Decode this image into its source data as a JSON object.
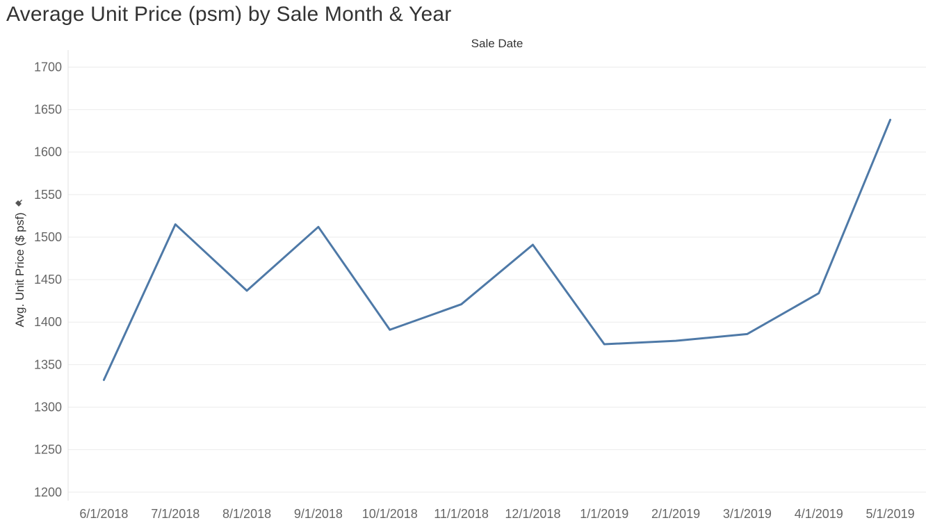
{
  "title": "Average Unit Price (psm) by Sale Month & Year",
  "icons": {
    "axis_pin": "pin-icon"
  },
  "colors": {
    "series": "#4e79a7"
  },
  "chart_data": {
    "type": "line",
    "title": "Average Unit Price (psm) by Sale Month & Year",
    "xlabel": "Sale Date",
    "ylabel": "Avg. Unit Price ($ psf)",
    "categories": [
      "6/1/2018",
      "7/1/2018",
      "8/1/2018",
      "9/1/2018",
      "10/1/2018",
      "11/1/2018",
      "12/1/2018",
      "1/1/2019",
      "2/1/2019",
      "3/1/2019",
      "4/1/2019",
      "5/1/2019"
    ],
    "series": [
      {
        "values": [
          1332,
          1515,
          1437,
          1512,
          1391,
          1421,
          1491,
          1374,
          1378,
          1386,
          1434,
          1638
        ]
      }
    ],
    "yticks": [
      1200,
      1250,
      1300,
      1350,
      1400,
      1450,
      1500,
      1550,
      1600,
      1650,
      1700
    ],
    "ylim": [
      1190,
      1720
    ],
    "grid": true,
    "legend": "none"
  }
}
